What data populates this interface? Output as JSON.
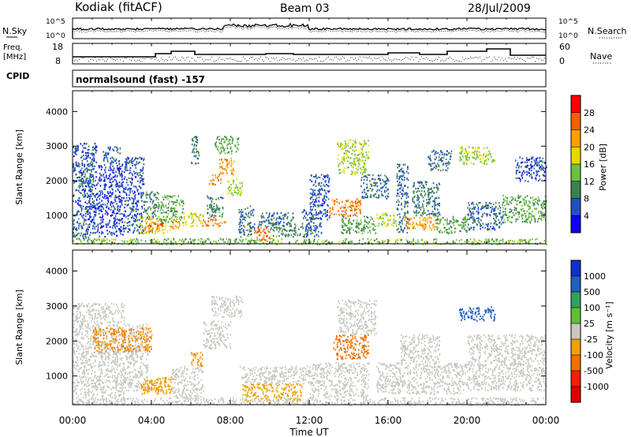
{
  "header": {
    "station": "Kodiak (fitACF)",
    "beam": "Beam 03",
    "date": "28/Jul/2009"
  },
  "noise_panel": {
    "left_label": "N.Sky",
    "right_label": "N.Search",
    "ticks": [
      "10^5",
      "10^0"
    ]
  },
  "freq_panel": {
    "left_label_1": "Freq.",
    "left_label_2": "[MHz]",
    "left_ticks": [
      "18",
      "8"
    ],
    "right_label": "Nave",
    "right_ticks": [
      "60",
      "0"
    ]
  },
  "cpid": {
    "label": "CPID",
    "program": "normalsound (fast) -157"
  },
  "power_panel": {
    "ylabel": "Slant Range [km]",
    "colorbar_label": "Power [dB]",
    "colorbar_ticks": [
      "28",
      "24",
      "20",
      "16",
      "12",
      "8",
      "4"
    ],
    "colorbar_colors": [
      "#ff0000",
      "#f26000",
      "#f8a000",
      "#e8d800",
      "#6cc040",
      "#3c8050",
      "#2050c0",
      "#1000f0"
    ]
  },
  "velocity_panel": {
    "ylabel": "Slant Range [km]",
    "colorbar_label": "Velocity [m s⁻¹]",
    "colorbar_ticks": [
      "1000",
      "500",
      "100",
      "25",
      "-25",
      "-100",
      "-500",
      "-1000"
    ],
    "colorbar_colors": [
      "#1030c8",
      "#2060c0",
      "#30a060",
      "#60c030",
      "#c8c8c0",
      "#f0a000",
      "#f07000",
      "#f02000",
      "#e00000"
    ]
  },
  "time_axis": {
    "label": "Time UT",
    "ticks": [
      "00:00",
      "04:00",
      "08:00",
      "12:00",
      "16:00",
      "20:00",
      "00:00"
    ]
  },
  "chart_data": {
    "type": "heatmap",
    "x_range_hours": [
      0,
      24
    ],
    "y_range_km": [
      180,
      4600
    ],
    "y_ticks": [
      1000,
      2000,
      3000,
      4000
    ],
    "power_cells": [
      {
        "t0": 0.0,
        "t1": 1.2,
        "r0": 400,
        "r1": 3100,
        "dB": 6
      },
      {
        "t0": 0.3,
        "t1": 1.0,
        "r0": 1800,
        "r1": 2600,
        "dB": 8
      },
      {
        "t0": 0.0,
        "t1": 0.8,
        "r0": 300,
        "r1": 450,
        "dB": 10
      },
      {
        "t0": 1.2,
        "t1": 2.6,
        "r0": 400,
        "r1": 2500,
        "dB": 5
      },
      {
        "t0": 1.5,
        "t1": 2.4,
        "r0": 2500,
        "r1": 3000,
        "dB": 7
      },
      {
        "t0": 2.6,
        "t1": 3.6,
        "r0": 500,
        "r1": 2700,
        "dB": 6
      },
      {
        "t0": 3.6,
        "t1": 4.4,
        "r0": 900,
        "r1": 1700,
        "dB": 10
      },
      {
        "t0": 3.4,
        "t1": 4.8,
        "r0": 500,
        "r1": 1000,
        "dB": 18
      },
      {
        "t0": 3.6,
        "t1": 4.6,
        "r0": 550,
        "r1": 800,
        "dB": 26
      },
      {
        "t0": 4.4,
        "t1": 5.6,
        "r0": 800,
        "r1": 1600,
        "dB": 12
      },
      {
        "t0": 4.8,
        "t1": 5.4,
        "r0": 600,
        "r1": 900,
        "dB": 22
      },
      {
        "t0": 5.6,
        "t1": 6.6,
        "r0": 700,
        "r1": 1100,
        "dB": 18
      },
      {
        "t0": 6.0,
        "t1": 6.4,
        "r0": 2500,
        "r1": 3300,
        "dB": 9
      },
      {
        "t0": 6.8,
        "t1": 7.6,
        "r0": 900,
        "r1": 1600,
        "dB": 10
      },
      {
        "t0": 6.6,
        "t1": 7.8,
        "r0": 700,
        "r1": 900,
        "dB": 24
      },
      {
        "t0": 6.9,
        "t1": 7.5,
        "r0": 1900,
        "r1": 2200,
        "dB": 24
      },
      {
        "t0": 7.4,
        "t1": 8.2,
        "r0": 2200,
        "r1": 2700,
        "dB": 22
      },
      {
        "t0": 7.8,
        "t1": 8.6,
        "r0": 1600,
        "r1": 2100,
        "dB": 16
      },
      {
        "t0": 7.2,
        "t1": 8.4,
        "r0": 2800,
        "r1": 3300,
        "dB": 12
      },
      {
        "t0": 8.4,
        "t1": 9.2,
        "r0": 400,
        "r1": 1300,
        "dB": 8
      },
      {
        "t0": 9.2,
        "t1": 10.0,
        "r0": 300,
        "r1": 700,
        "dB": 26
      },
      {
        "t0": 9.4,
        "t1": 11.2,
        "r0": 700,
        "r1": 1100,
        "dB": 8
      },
      {
        "t0": 10.0,
        "t1": 11.6,
        "r0": 400,
        "r1": 800,
        "dB": 10
      },
      {
        "t0": 11.6,
        "t1": 12.6,
        "r0": 400,
        "r1": 1200,
        "dB": 7
      },
      {
        "t0": 12.0,
        "t1": 13.0,
        "r0": 900,
        "r1": 2200,
        "dB": 6
      },
      {
        "t0": 13.0,
        "t1": 14.6,
        "r0": 1000,
        "r1": 1500,
        "dB": 25
      },
      {
        "t0": 13.4,
        "t1": 15.0,
        "r0": 2200,
        "r1": 3200,
        "dB": 16
      },
      {
        "t0": 13.6,
        "t1": 15.4,
        "r0": 500,
        "r1": 1000,
        "dB": 12
      },
      {
        "t0": 14.6,
        "t1": 16.0,
        "r0": 1500,
        "r1": 2200,
        "dB": 8
      },
      {
        "t0": 15.4,
        "t1": 16.4,
        "r0": 700,
        "r1": 1100,
        "dB": 16
      },
      {
        "t0": 16.4,
        "t1": 17.0,
        "r0": 500,
        "r1": 2500,
        "dB": 7
      },
      {
        "t0": 16.8,
        "t1": 18.4,
        "r0": 600,
        "r1": 1000,
        "dB": 22
      },
      {
        "t0": 17.2,
        "t1": 18.6,
        "r0": 1000,
        "r1": 2000,
        "dB": 9
      },
      {
        "t0": 18.0,
        "t1": 19.2,
        "r0": 2300,
        "r1": 2900,
        "dB": 8
      },
      {
        "t0": 18.4,
        "t1": 20.0,
        "r0": 500,
        "r1": 1000,
        "dB": 12
      },
      {
        "t0": 19.6,
        "t1": 21.4,
        "r0": 2500,
        "r1": 3000,
        "dB": 16
      },
      {
        "t0": 20.0,
        "t1": 21.8,
        "r0": 600,
        "r1": 1400,
        "dB": 8
      },
      {
        "t0": 21.8,
        "t1": 24.0,
        "r0": 800,
        "r1": 1600,
        "dB": 12
      },
      {
        "t0": 22.4,
        "t1": 24.0,
        "r0": 2000,
        "r1": 2700,
        "dB": 6
      },
      {
        "t0": 0.0,
        "t1": 24.0,
        "r0": 180,
        "r1": 350,
        "dB": 14
      }
    ],
    "velocity_cells": [
      {
        "t0": 0.0,
        "t1": 2.6,
        "r0": 400,
        "r1": 3100,
        "v": 0
      },
      {
        "t0": 2.6,
        "t1": 3.8,
        "r0": 600,
        "r1": 2500,
        "v": 0
      },
      {
        "t0": 1.0,
        "t1": 4.0,
        "r0": 1700,
        "r1": 2400,
        "v": -100
      },
      {
        "t0": 3.4,
        "t1": 5.0,
        "r0": 500,
        "r1": 1000,
        "v": -50
      },
      {
        "t0": 3.6,
        "t1": 4.6,
        "r0": 600,
        "r1": 900,
        "v": -60
      },
      {
        "t0": 5.0,
        "t1": 6.6,
        "r0": 400,
        "r1": 1300,
        "v": 0
      },
      {
        "t0": 6.0,
        "t1": 6.6,
        "r0": 1300,
        "r1": 1700,
        "v": -100
      },
      {
        "t0": 6.6,
        "t1": 8.0,
        "r0": 1800,
        "r1": 2600,
        "v": 10
      },
      {
        "t0": 7.0,
        "t1": 8.6,
        "r0": 2700,
        "r1": 3300,
        "v": 0
      },
      {
        "t0": 8.6,
        "t1": 11.6,
        "r0": 300,
        "r1": 800,
        "v": -60
      },
      {
        "t0": 8.4,
        "t1": 12.0,
        "r0": 800,
        "r1": 1300,
        "v": 0
      },
      {
        "t0": 12.0,
        "t1": 15.0,
        "r0": 400,
        "r1": 1400,
        "v": 0
      },
      {
        "t0": 13.2,
        "t1": 15.0,
        "r0": 1500,
        "r1": 2200,
        "v": -200
      },
      {
        "t0": 13.4,
        "t1": 15.4,
        "r0": 2200,
        "r1": 3200,
        "v": 0
      },
      {
        "t0": 15.4,
        "t1": 20.0,
        "r0": 500,
        "r1": 1400,
        "v": 0
      },
      {
        "t0": 16.6,
        "t1": 18.6,
        "r0": 1400,
        "r1": 2200,
        "v": 0
      },
      {
        "t0": 19.6,
        "t1": 21.4,
        "r0": 2600,
        "r1": 3000,
        "v": 200
      },
      {
        "t0": 20.0,
        "t1": 24.0,
        "r0": 600,
        "r1": 2200,
        "v": 0
      },
      {
        "t0": 0.0,
        "t1": 24.0,
        "r0": 180,
        "r1": 400,
        "v": 5
      }
    ]
  }
}
